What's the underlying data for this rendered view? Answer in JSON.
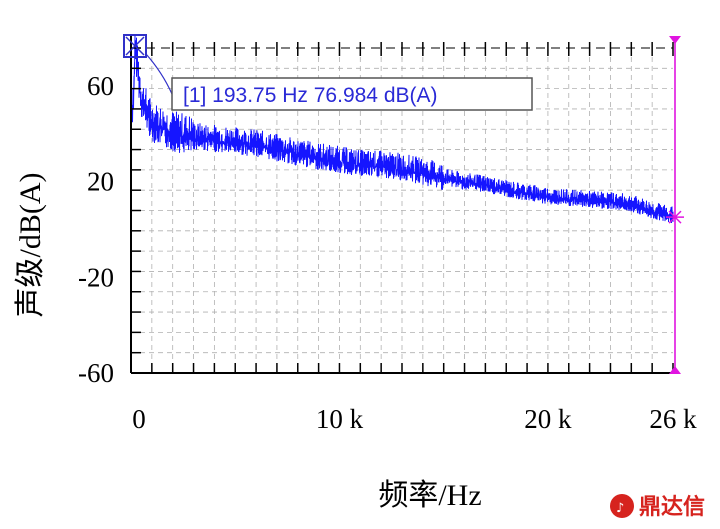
{
  "colors": {
    "signal": "#1515ff",
    "marker_line": "#e014e0",
    "cursor_box": "#3030c8",
    "grid": "#b0b0b0",
    "brand": "#d6231e"
  },
  "cursor_label": "[1] 193.75 Hz 76.984 dB(A)",
  "watermark": "鼎达信",
  "chart_data": {
    "type": "line",
    "xlabel": "频率/Hz",
    "ylabel": "声级/dB(A)",
    "xlim": [
      0,
      26000
    ],
    "ylim": [
      -60,
      80
    ],
    "x_ticks": [
      0,
      10000,
      20000,
      26000
    ],
    "x_tick_labels": [
      "0",
      "10 k",
      "20 k",
      "26 k"
    ],
    "y_ticks": [
      60,
      20,
      -20,
      -60
    ],
    "y_tick_labels": [
      "60",
      "20",
      "-20",
      "-60"
    ],
    "grid": true,
    "series": [
      {
        "x": [
          0,
          150,
          193.75,
          500,
          1000,
          2000,
          3000,
          4000,
          5000,
          6000,
          7000,
          8000,
          9000,
          10000,
          11000,
          12000,
          13000,
          14000,
          15000,
          16000,
          17000,
          18000,
          19000,
          20000,
          21000,
          22000,
          23000,
          24000,
          25000,
          26000
        ],
        "y": [
          45,
          60,
          76.984,
          55,
          45,
          41,
          39,
          38,
          37,
          36,
          34,
          32,
          30.5,
          29,
          27.5,
          27,
          26,
          24,
          22,
          20,
          19,
          17,
          15.5,
          14,
          13,
          12.5,
          12,
          11,
          8,
          6
        ]
      }
    ],
    "cursors": [
      {
        "label": "[1]",
        "x": 193.75,
        "y": 76.984
      },
      {
        "x": 26000
      }
    ]
  }
}
